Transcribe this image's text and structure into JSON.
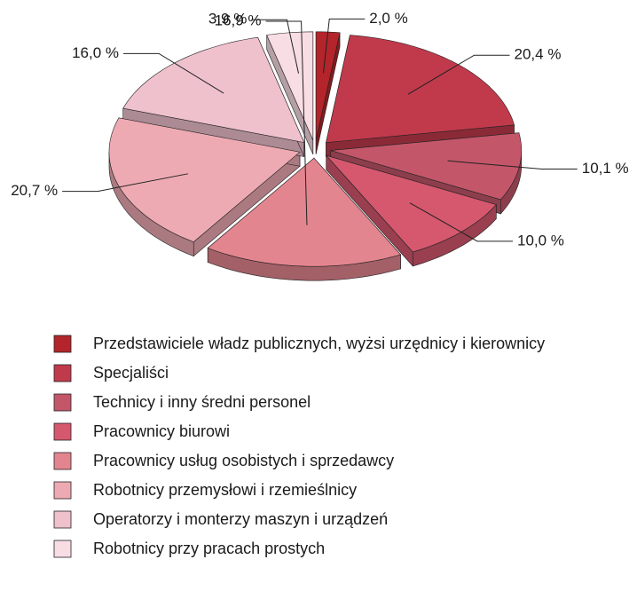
{
  "chart_data": {
    "type": "pie",
    "categories": [
      "Przedstawiciele władz publicznych, wyżsi urzędnicy i kierownicy",
      "Specjaliści",
      "Technicy i inny średni personel",
      "Pracownicy biurowi",
      "Pracownicy usług osobistych i sprzedawcy",
      "Robotnicy przemysłowi i rzemieślnicy",
      "Operatorzy i monterzy maszyn i urządzeń",
      "Robotnicy przy pracach prostych"
    ],
    "values": [
      2.0,
      20.4,
      10.1,
      10.0,
      16.9,
      20.7,
      16.0,
      3.9
    ],
    "value_labels": [
      "2,0 %",
      "20,4 %",
      "10,1 %",
      "10,0 %",
      "16,9 %",
      "20,7 %",
      "16,0 %",
      "3,9 %"
    ],
    "colors": [
      "#b3252b",
      "#c13a4c",
      "#c4566a",
      "#d5586f",
      "#e3858f",
      "#eeaab3",
      "#efc1cd",
      "#f9dde5"
    ],
    "legend": "bottom"
  }
}
